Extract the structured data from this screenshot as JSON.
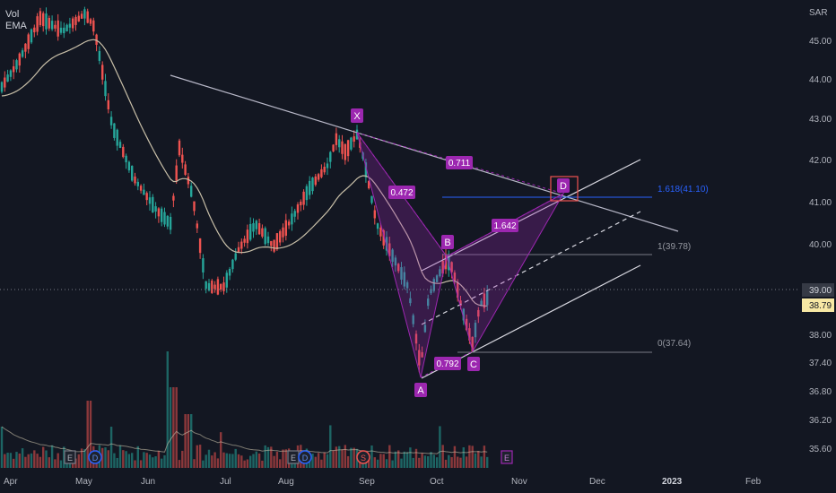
{
  "legend": {
    "vol": "Vol",
    "ema": "EMA"
  },
  "currency": "SAR",
  "colors": {
    "background": "#131722",
    "up": "#26a69a",
    "down": "#ef5350",
    "ema": "#c8bfa8",
    "pattern": "#9c27b0",
    "trendline": "#b8b8c8",
    "fib_line": "#2962ff",
    "axis_text": "#b2b5be",
    "price_tag_current": "#363a45",
    "price_tag_last": "#f7e8a4"
  },
  "chart_data": {
    "type": "candlestick",
    "symbol_currency": "SAR",
    "y_axis_ticks": [
      "45.00",
      "44.00",
      "43.00",
      "42.00",
      "41.00",
      "40.00",
      "38.00",
      "37.40",
      "36.80",
      "36.20",
      "35.60"
    ],
    "x_axis_ticks": [
      "Apr",
      "May",
      "Jun",
      "Jul",
      "Aug",
      "Sep",
      "Oct",
      "Nov",
      "Dec",
      "2023",
      "Feb"
    ],
    "price_labels": {
      "current": "39.00",
      "last": "38.79"
    },
    "harmonic_pattern": {
      "points": [
        {
          "label": "X",
          "time": "2022-08-28",
          "price": 42.8
        },
        {
          "label": "A",
          "time": "2022-09-27",
          "price": 37.15
        },
        {
          "label": "B",
          "time": "2022-10-04",
          "price": 39.9
        },
        {
          "label": "C",
          "time": "2022-10-17",
          "price": 37.6
        },
        {
          "label": "D",
          "time": "2022-11-20",
          "price": 41.15
        }
      ],
      "ratios": [
        "0.472",
        "0.792",
        "1.642",
        "0.711"
      ]
    },
    "fibonacci": [
      {
        "label": "1.618(41.10)",
        "price": 41.1
      },
      {
        "label": "1(39.78)",
        "price": 39.78
      },
      {
        "label": "0(37.64)",
        "price": 37.64
      }
    ],
    "event_markers": [
      "E",
      "D",
      "E",
      "D",
      "S",
      "E"
    ],
    "grid": false,
    "legend_position": "top-left"
  }
}
